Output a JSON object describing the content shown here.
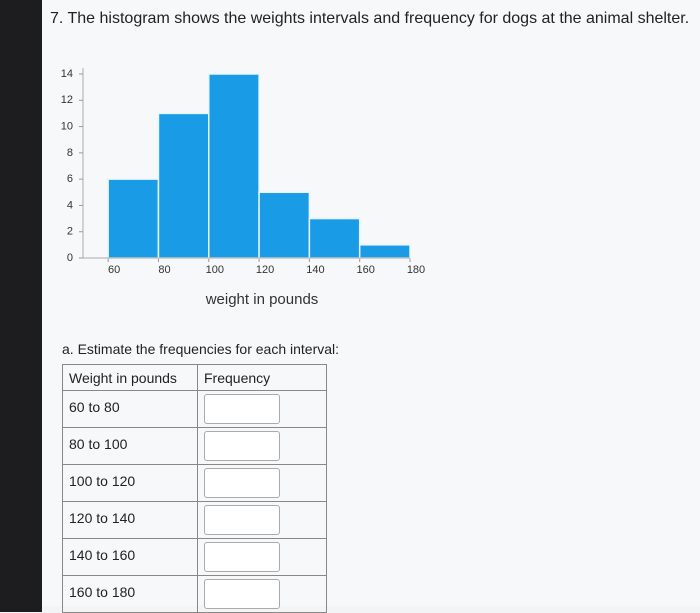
{
  "question": "7. The histogram shows the weights intervals and frequency for dogs at the animal shelter.",
  "chart_data": {
    "type": "histogram",
    "x_label": "weight in pounds",
    "bins": [
      60,
      80,
      100,
      120,
      140,
      160,
      180
    ],
    "counts": [
      6,
      11,
      14,
      5,
      3,
      1
    ],
    "color": "#1a9be6",
    "xlim": [
      50,
      180
    ],
    "xticks": [
      60,
      80,
      100,
      120,
      140,
      160,
      180
    ],
    "ylim": [
      0,
      14
    ],
    "yticks": [
      0,
      2,
      4,
      6,
      8,
      10,
      12,
      14
    ]
  },
  "part_a": "a. Estimate the frequencies for each interval:",
  "table": {
    "header": [
      "Weight in pounds",
      "Frequency"
    ],
    "rows": [
      "60 to 80",
      "80 to 100",
      "100 to 120",
      "120 to 140",
      "140 to 160",
      "160 to 180"
    ]
  }
}
